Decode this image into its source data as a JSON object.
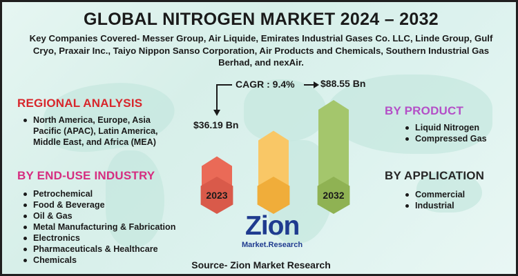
{
  "title": "GLOBAL NITROGEN MARKET 2024 – 2032",
  "subtitle": "Key Companies Covered- Messer Group, Air Liquide, Emirates Industrial Gases Co. LLC, Linde Group, Gulf Cryo, Praxair Inc., Taiyo Nippon Sanso Corporation, Air Products and Chemicals, Southern Industrial Gas Berhad, and nexAir.",
  "regional": {
    "heading": "REGIONAL ANALYSIS",
    "items": [
      "North America, Europe, Asia Pacific (APAC), Latin America, Middle East, and Africa (MEA)"
    ]
  },
  "end_use": {
    "heading": "BY END-USE INDUSTRY",
    "items": [
      "Petrochemical",
      "Food & Beverage",
      "Oil & Gas",
      "Metal Manufacturing & Fabrication",
      "Electronics",
      "Pharmaceuticals & Healthcare",
      "Chemicals"
    ]
  },
  "product": {
    "heading": "BY PRODUCT",
    "items": [
      "Liquid Nitrogen",
      "Compressed Gas"
    ]
  },
  "application": {
    "heading": "BY APPLICATION",
    "items": [
      "Commercial",
      "Industrial"
    ]
  },
  "chart_data": {
    "type": "bar",
    "categories": [
      "2023",
      "",
      "2032"
    ],
    "values": [
      36.19,
      60,
      88.55
    ],
    "value_labels": [
      "$36.19 Bn",
      "",
      "$88.55 Bn"
    ],
    "cagr_label": "CAGR : 9.4%",
    "colors": [
      "#ea6a57",
      "#f9c766",
      "#a4c66c"
    ],
    "hex_colors": [
      "#d95a4a",
      "#f0ad3a",
      "#8fb253"
    ]
  },
  "logo": {
    "name": "Zion",
    "tagline": "Market.Research"
  },
  "source": "Source- Zion Market Research"
}
